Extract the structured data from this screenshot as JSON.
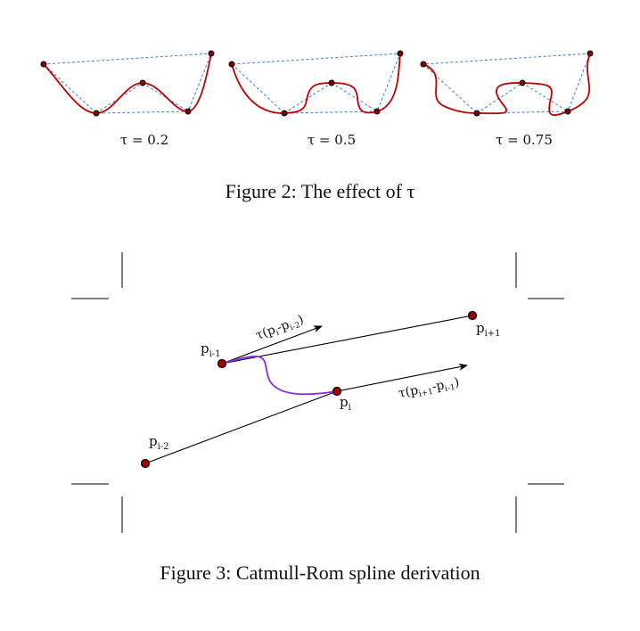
{
  "figure2": {
    "panels": [
      {
        "tau_label": "τ = 0.2"
      },
      {
        "tau_label": "τ = 0.5"
      },
      {
        "tau_label": "τ = 0.75"
      }
    ],
    "caption": "Figure 2:  The effect of τ",
    "colors": {
      "curve": "#c00000",
      "control_polygon": "#3a7bd5",
      "points": "#8b0000"
    }
  },
  "figure3": {
    "points": {
      "p_i_minus_2": {
        "base": "p",
        "sub": "i-2"
      },
      "p_i_minus_1": {
        "base": "p",
        "sub": "i-1"
      },
      "p_i": {
        "base": "p",
        "sub": "i"
      },
      "p_i_plus_1": {
        "base": "p",
        "sub": "i+1"
      }
    },
    "tangent_top": {
      "prefix": "τ(p",
      "sub1": "i",
      "mid": "-p",
      "sub2": "i-2",
      "suffix": ")"
    },
    "tangent_bottom": {
      "prefix": "τ(p",
      "sub1": "i+1",
      "mid": "-p",
      "sub2": "i-1",
      "suffix": ")"
    },
    "caption": "Figure 3:  Catmull-Rom spline derivation",
    "colors": {
      "curve": "#8a2be2",
      "points": "#a00000"
    }
  }
}
